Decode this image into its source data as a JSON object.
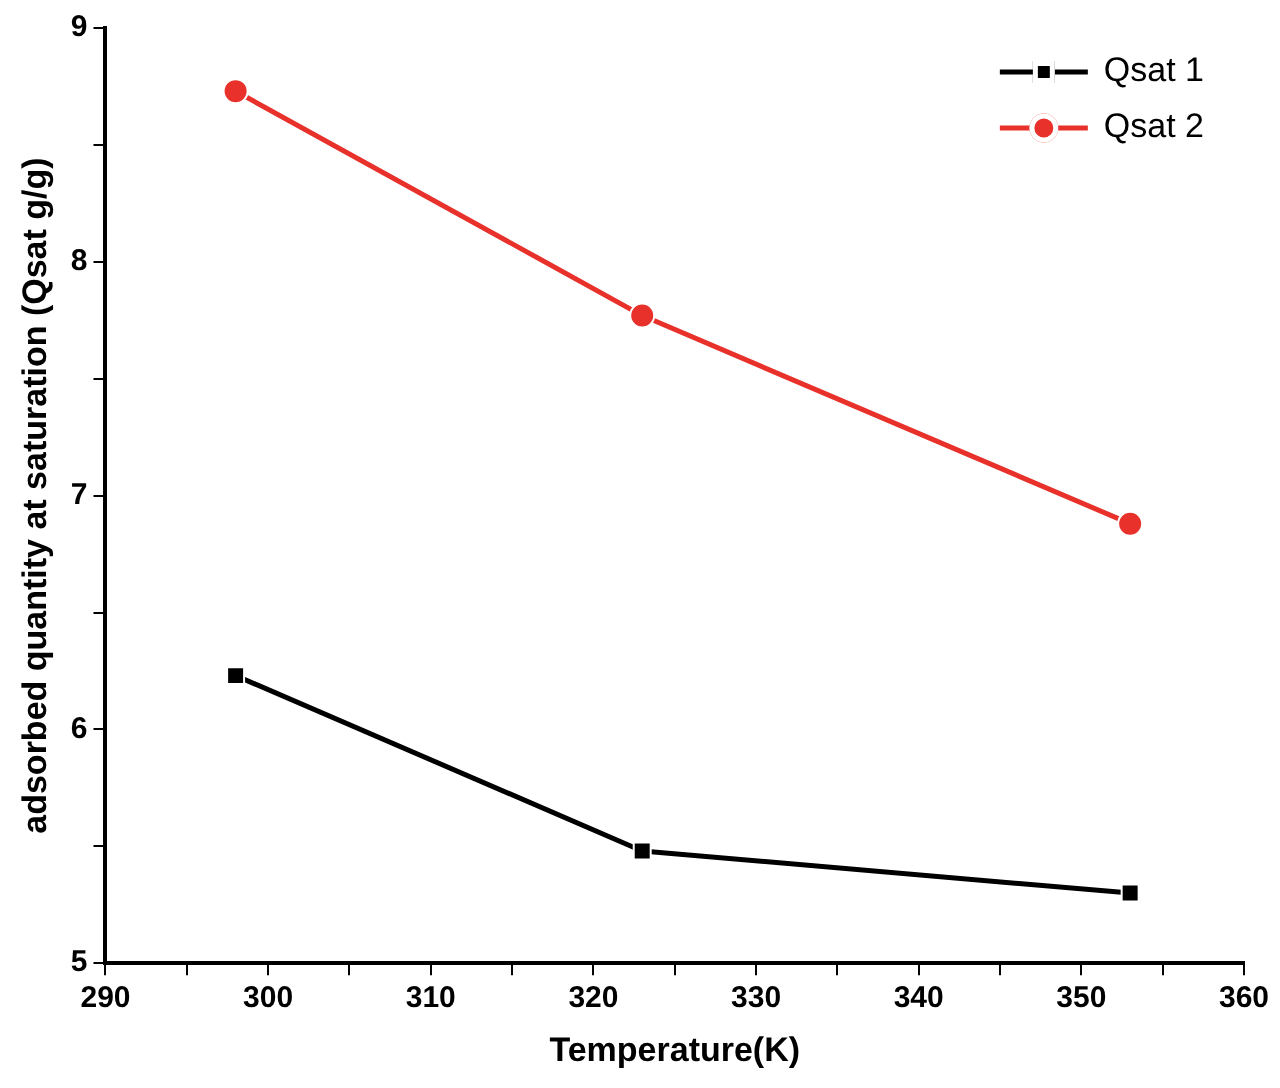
{
  "chart_data": {
    "type": "line",
    "xlabel": "Temperature(K)",
    "ylabel": "adsorbed quantity at saturation (Qsat g/g)",
    "x": [
      298,
      323,
      353
    ],
    "series": [
      {
        "name": "Qsat 1",
        "color": "#000000",
        "marker": "square",
        "values": [
          6.23,
          5.48,
          5.3
        ]
      },
      {
        "name": "Qsat 2",
        "color": "#e8312a",
        "marker": "circle",
        "values": [
          8.73,
          7.77,
          6.88
        ]
      }
    ],
    "xlim": [
      290,
      360
    ],
    "xticks": [
      290,
      {
        "value": 295,
        "label": null
      },
      300,
      {
        "value": 305,
        "label": null
      },
      310,
      {
        "value": 315,
        "label": null
      },
      320,
      {
        "value": 325,
        "label": null
      },
      330,
      {
        "value": 335,
        "label": null
      },
      340,
      {
        "value": 345,
        "label": null
      },
      350,
      {
        "value": 355,
        "label": null
      },
      360
    ],
    "ylim": [
      5,
      9
    ],
    "yticks": [
      5,
      {
        "value": 5.5,
        "label": null
      },
      6,
      {
        "value": 6.5,
        "label": null
      },
      7,
      {
        "value": 7.5,
        "label": null
      },
      8,
      {
        "value": 8.5,
        "label": null
      },
      9
    ],
    "grid": false,
    "legend": "top right",
    "line_style": "solid"
  }
}
